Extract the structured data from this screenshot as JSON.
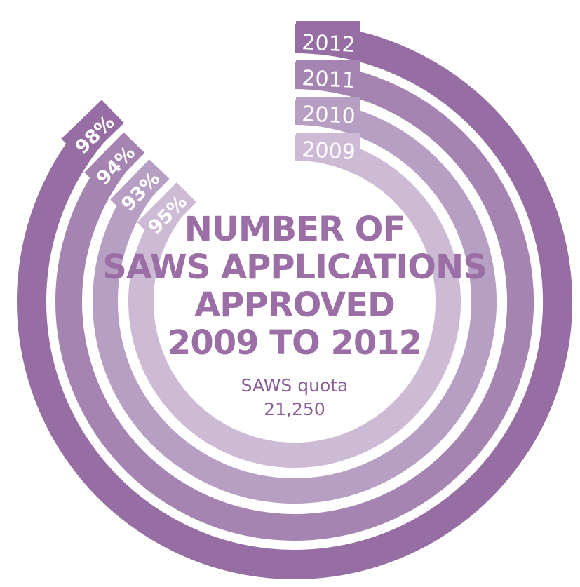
{
  "chart_data": {
    "type": "radial-bar",
    "title_lines": [
      "NUMBER OF",
      "SAWS APPLICATIONS",
      "APPROVED",
      "2009 TO 2012"
    ],
    "subtitle_lines": [
      "SAWS quota",
      "21,250"
    ],
    "series": [
      {
        "year": "2012",
        "percent_label": "98%",
        "value": 98,
        "color": "#976ea3"
      },
      {
        "year": "2011",
        "percent_label": "94%",
        "value": 94,
        "color": "#a584b1"
      },
      {
        "year": "2010",
        "percent_label": "93%",
        "value": 93,
        "color": "#b79fc3"
      },
      {
        "year": "2009",
        "percent_label": "95%",
        "value": 95,
        "color": "#cdbbd6"
      }
    ],
    "title_color": "#9b6fa5",
    "subtitle_color": "#8a5f98"
  }
}
